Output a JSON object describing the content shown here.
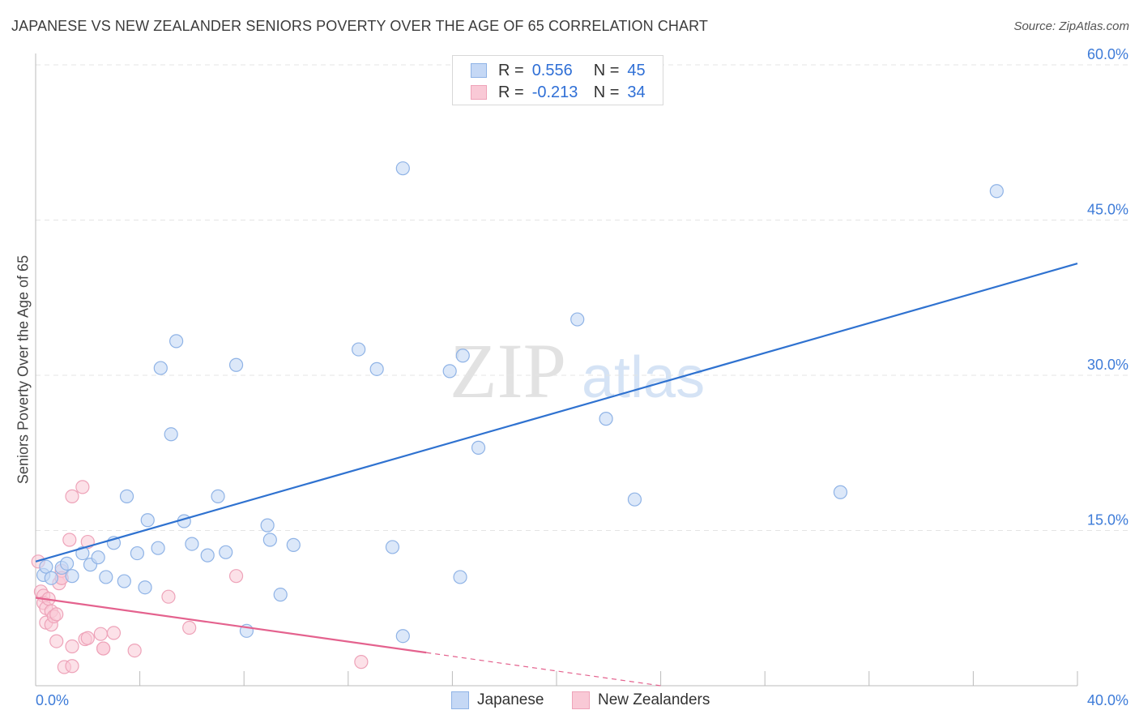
{
  "header": {
    "title": "JAPANESE VS NEW ZEALANDER SENIORS POVERTY OVER THE AGE OF 65 CORRELATION CHART",
    "source": "Source: ZipAtlas.com"
  },
  "watermark": {
    "zip": "ZIP",
    "atlas": "atlas"
  },
  "legend": {
    "r_label": "R =",
    "n_label": "N =",
    "rows": [
      {
        "r": "0.556",
        "n": "45"
      },
      {
        "r": "-0.213",
        "n": "34"
      }
    ]
  },
  "bottom_legend": {
    "japanese": "Japanese",
    "new_zealanders": "New Zealanders"
  },
  "colors": {
    "japanese_fill": "#c5d8f5",
    "japanese_stroke": "#8fb3e6",
    "japanese_line": "#2f72d0",
    "nz_fill": "#f9c9d6",
    "nz_stroke": "#eea3b9",
    "nz_line": "#e4628e",
    "axis_label": "#3d7bd8",
    "grid": "#e4e4e4"
  },
  "chart_data": {
    "type": "scatter",
    "title": "JAPANESE VS NEW ZEALANDER SENIORS POVERTY OVER THE AGE OF 65 CORRELATION CHART",
    "xlabel": "",
    "ylabel": "Seniors Poverty Over the Age of 65",
    "xlim": [
      0,
      40
    ],
    "ylim": [
      0,
      60
    ],
    "x_tick_labels": [
      "0.0%",
      "40.0%"
    ],
    "y_ticks": [
      15,
      30,
      45,
      60
    ],
    "y_tick_labels": [
      "15.0%",
      "30.0%",
      "45.0%",
      "60.0%"
    ],
    "grid": true,
    "series": [
      {
        "name": "Japanese",
        "r": 0.556,
        "n": 45,
        "points": [
          [
            0.3,
            10.7
          ],
          [
            0.4,
            11.5
          ],
          [
            0.6,
            10.4
          ],
          [
            1.0,
            11.4
          ],
          [
            1.2,
            11.8
          ],
          [
            1.4,
            10.6
          ],
          [
            1.8,
            12.8
          ],
          [
            2.1,
            11.7
          ],
          [
            2.4,
            12.4
          ],
          [
            2.7,
            10.5
          ],
          [
            3.0,
            13.8
          ],
          [
            3.4,
            10.1
          ],
          [
            3.5,
            18.3
          ],
          [
            3.9,
            12.8
          ],
          [
            4.2,
            9.5
          ],
          [
            4.3,
            16.0
          ],
          [
            4.7,
            13.3
          ],
          [
            4.8,
            30.7
          ],
          [
            5.2,
            24.3
          ],
          [
            5.4,
            33.3
          ],
          [
            5.7,
            15.9
          ],
          [
            6.0,
            13.7
          ],
          [
            6.6,
            12.6
          ],
          [
            7.0,
            18.3
          ],
          [
            7.3,
            12.9
          ],
          [
            7.7,
            31.0
          ],
          [
            8.1,
            5.3
          ],
          [
            8.9,
            15.5
          ],
          [
            9.0,
            14.1
          ],
          [
            9.4,
            8.8
          ],
          [
            9.9,
            13.6
          ],
          [
            12.4,
            32.5
          ],
          [
            13.1,
            30.6
          ],
          [
            14.1,
            4.8
          ],
          [
            13.7,
            13.4
          ],
          [
            14.1,
            50.0
          ],
          [
            15.9,
            30.4
          ],
          [
            16.3,
            10.5
          ],
          [
            16.4,
            31.9
          ],
          [
            17.0,
            23.0
          ],
          [
            20.8,
            35.4
          ],
          [
            21.9,
            25.8
          ],
          [
            23.0,
            18.0
          ],
          [
            30.9,
            18.7
          ],
          [
            36.9,
            47.8
          ]
        ],
        "trend": {
          "x0": 0,
          "y0": 12.0,
          "x1": 40,
          "y1": 40.8
        }
      },
      {
        "name": "New Zealanders",
        "r": -0.213,
        "n": 34,
        "points": [
          [
            0.1,
            12.0
          ],
          [
            0.2,
            9.1
          ],
          [
            0.3,
            8.7
          ],
          [
            0.3,
            8.0
          ],
          [
            0.4,
            7.5
          ],
          [
            0.4,
            6.1
          ],
          [
            0.5,
            8.4
          ],
          [
            0.6,
            7.2
          ],
          [
            0.6,
            5.9
          ],
          [
            0.7,
            6.7
          ],
          [
            0.8,
            4.3
          ],
          [
            0.8,
            6.9
          ],
          [
            0.9,
            9.9
          ],
          [
            1.0,
            10.4
          ],
          [
            1.0,
            11.1
          ],
          [
            1.1,
            1.8
          ],
          [
            1.3,
            14.1
          ],
          [
            1.4,
            18.3
          ],
          [
            1.4,
            1.9
          ],
          [
            1.4,
            3.8
          ],
          [
            1.8,
            19.2
          ],
          [
            1.9,
            4.5
          ],
          [
            2.0,
            13.9
          ],
          [
            2.0,
            4.6
          ],
          [
            2.5,
            5.0
          ],
          [
            2.6,
            3.6
          ],
          [
            3.0,
            5.1
          ],
          [
            3.8,
            3.4
          ],
          [
            5.1,
            8.6
          ],
          [
            5.9,
            5.6
          ],
          [
            7.7,
            10.6
          ],
          [
            12.5,
            2.3
          ],
          [
            1.0,
            10.4
          ],
          [
            2.6,
            3.6
          ]
        ],
        "trend": {
          "x0": 0,
          "y0": 8.5,
          "x1": 15.0,
          "y1": 3.2
        },
        "trend_extension": {
          "x0": 15.0,
          "y0": 3.2,
          "x1": 24.0,
          "y1": 0.0
        }
      }
    ]
  }
}
